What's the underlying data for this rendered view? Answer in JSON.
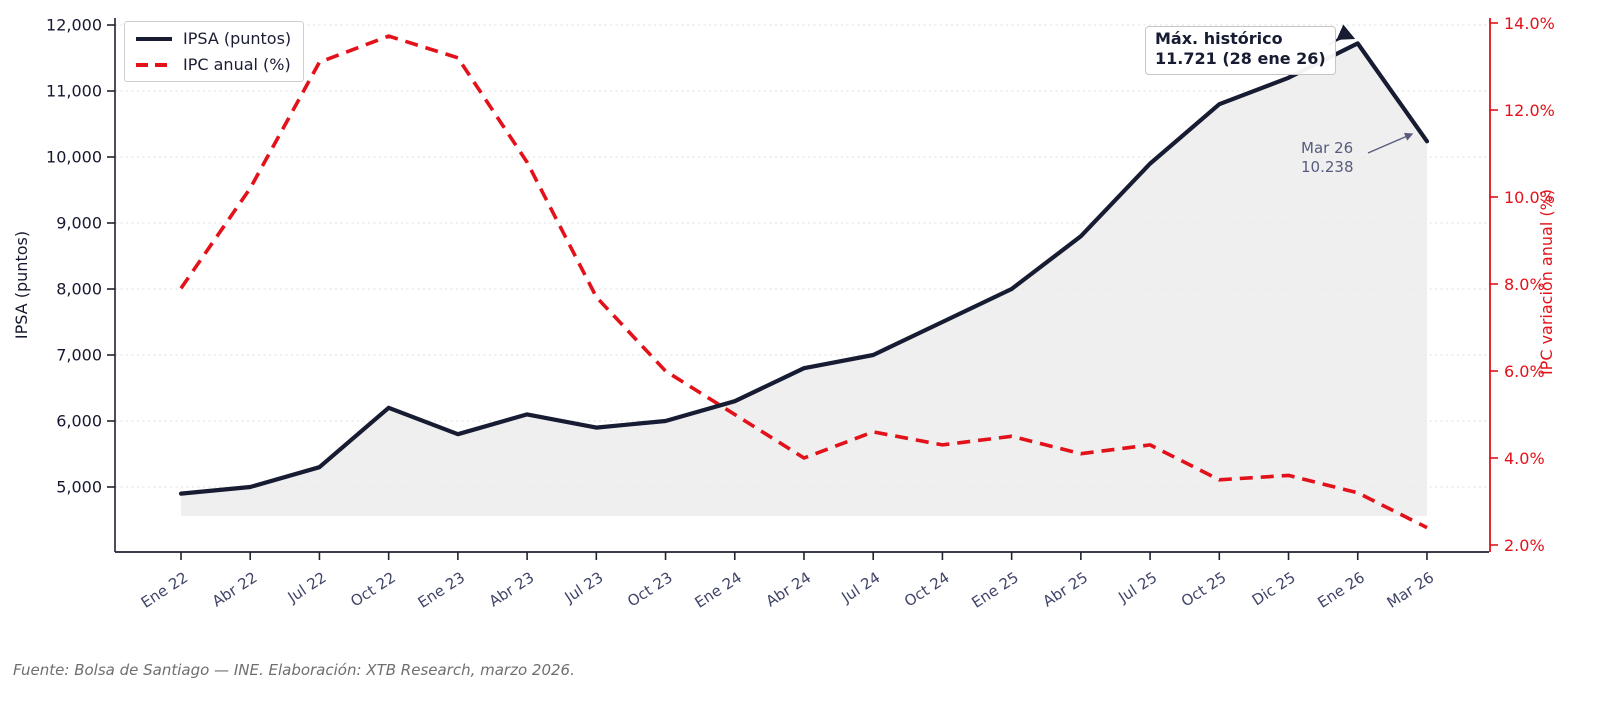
{
  "chart_data": {
    "type": "line",
    "title": "",
    "categories": [
      "Ene 22",
      "Abr 22",
      "Jul 22",
      "Oct 22",
      "Ene 23",
      "Abr 23",
      "Jul 23",
      "Oct 23",
      "Ene 24",
      "Abr 24",
      "Jul 24",
      "Oct 24",
      "Ene 25",
      "Abr 25",
      "Jul 25",
      "Oct 25",
      "Dic 25",
      "Ene 26",
      "Mar 26"
    ],
    "series": [
      {
        "name": "IPSA (puntos)",
        "axis": "left",
        "style": "solid",
        "color": "#171c33",
        "values": [
          4900,
          5000,
          5300,
          6200,
          5800,
          6100,
          5900,
          6000,
          6300,
          6800,
          7000,
          7500,
          8000,
          8800,
          9900,
          10800,
          11200,
          11721,
          10238
        ]
      },
      {
        "name": "IPC anual (%)",
        "axis": "right",
        "style": "dashed",
        "color": "#e31119",
        "values": [
          7.9,
          10.2,
          13.1,
          13.7,
          13.2,
          10.8,
          7.7,
          6.0,
          5.0,
          4.0,
          4.6,
          4.3,
          4.5,
          4.1,
          4.3,
          3.5,
          3.6,
          3.2,
          2.4
        ]
      }
    ],
    "left_axis": {
      "label": "IPSA (puntos)",
      "tick_labels": [
        "5,000",
        "6,000",
        "7,000",
        "8,000",
        "9,000",
        "10,000",
        "11,000",
        "12,000"
      ],
      "tick_values": [
        5000,
        6000,
        7000,
        8000,
        9000,
        10000,
        11000,
        12000
      ],
      "range": [
        4000,
        12100
      ]
    },
    "right_axis": {
      "label": "IPC variación anual (%)",
      "tick_labels": [
        "2.0%",
        "4.0%",
        "6.0%",
        "8.0%",
        "10.0%",
        "12.0%",
        "14.0%"
      ],
      "tick_values": [
        2,
        4,
        6,
        8,
        10,
        12,
        14
      ],
      "range": [
        1.85,
        14.1
      ]
    },
    "area_fill_under_ipsa": true,
    "fill_baseline": 4560,
    "grid": "horizontal-dashed",
    "legend_position": "top-left"
  },
  "legend": {
    "items": [
      {
        "label": "IPSA (puntos)"
      },
      {
        "label": "IPC anual (%)"
      }
    ]
  },
  "annotations": {
    "max": {
      "line1": "Máx. histórico",
      "line2": "11.721 (28 ene 26)"
    },
    "last": {
      "line1": "Mar 26",
      "line2": "10.238"
    }
  },
  "footer": {
    "source": "Fuente: Bolsa de Santiago — INE. Elaboración: XTB Research, marzo 2026."
  },
  "colors": {
    "ipsa_line": "#171c33",
    "ipc_line": "#e31119",
    "area_fill": "#ececec",
    "grid_line": "#dedede",
    "left_tick_text": "#15182e",
    "x_tick_text": "#3f4468",
    "right_axis": "#e31119",
    "annotation_slate": "#575c7e",
    "spine_dark": "#1f2330"
  }
}
